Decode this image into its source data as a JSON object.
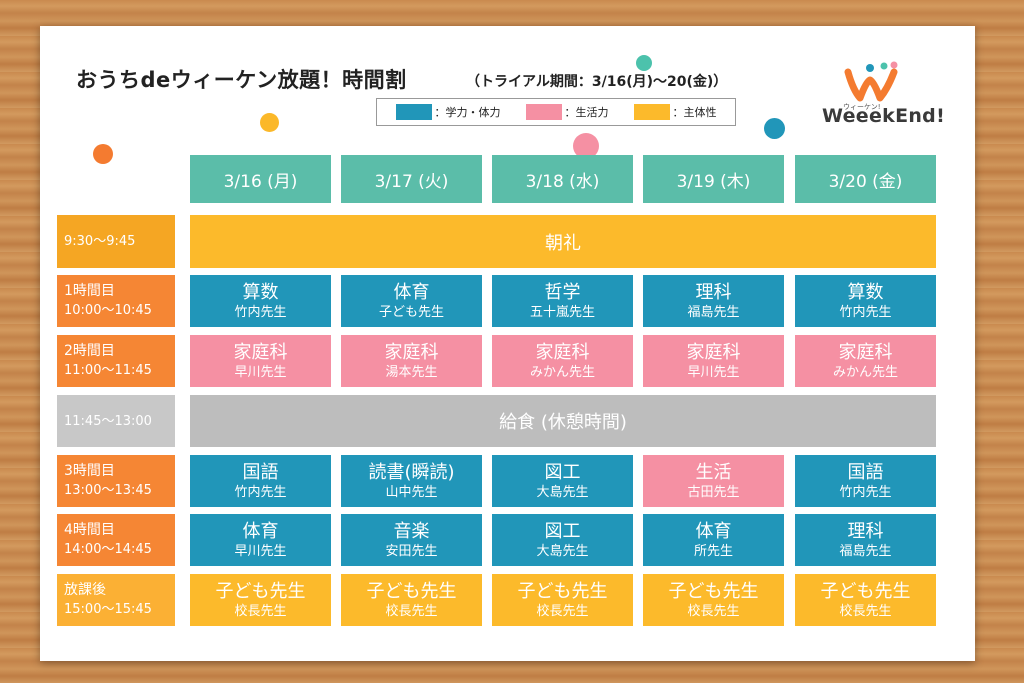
{
  "title": "おうちdeウィーケン放題！時間割",
  "subtitle": "（トライアル期間：3/16(月)～20(金)）",
  "legend": [
    {
      "label": "：学力・体力",
      "color": "#2196b9"
    },
    {
      "label": "：生活力",
      "color": "#f590a3"
    },
    {
      "label": "：主体性",
      "color": "#fcba2b"
    }
  ],
  "logo": {
    "text": "WeeekEnd!",
    "small": "ウィーケン!"
  },
  "days": [
    "3/16 (月)",
    "3/17 (火)",
    "3/18 (水)",
    "3/19 (木)",
    "3/20 (金)"
  ],
  "periods": [
    {
      "name": "",
      "time": "9:30～9:45"
    },
    {
      "name": "1時間目",
      "time": "10:00～10:45"
    },
    {
      "name": "2時間目",
      "time": "11:00～11:45"
    },
    {
      "name": "",
      "time": "11:45～13:00"
    },
    {
      "name": "3時間目",
      "time": "13:00～13:45"
    },
    {
      "name": "4時間目",
      "time": "14:00～14:45"
    },
    {
      "name": "放課後",
      "time": "15:00～15:45"
    }
  ],
  "morning": "朝礼",
  "lunch": "給食 (休憩時間)",
  "schedule": {
    "p1": [
      {
        "subject": "算数",
        "teacher": "竹内先生",
        "color": "#2196b9"
      },
      {
        "subject": "体育",
        "teacher": "子ども先生",
        "color": "#2196b9"
      },
      {
        "subject": "哲学",
        "teacher": "五十嵐先生",
        "color": "#2196b9"
      },
      {
        "subject": "理科",
        "teacher": "福島先生",
        "color": "#2196b9"
      },
      {
        "subject": "算数",
        "teacher": "竹内先生",
        "color": "#2196b9"
      }
    ],
    "p2": [
      {
        "subject": "家庭科",
        "teacher": "早川先生",
        "color": "#f590a3"
      },
      {
        "subject": "家庭科",
        "teacher": "湯本先生",
        "color": "#f590a3"
      },
      {
        "subject": "家庭科",
        "teacher": "みかん先生",
        "color": "#f590a3"
      },
      {
        "subject": "家庭科",
        "teacher": "早川先生",
        "color": "#f590a3"
      },
      {
        "subject": "家庭科",
        "teacher": "みかん先生",
        "color": "#f590a3"
      }
    ],
    "p3": [
      {
        "subject": "国語",
        "teacher": "竹内先生",
        "color": "#2196b9"
      },
      {
        "subject": "読書(瞬読)",
        "teacher": "山中先生",
        "color": "#2196b9"
      },
      {
        "subject": "図工",
        "teacher": "大島先生",
        "color": "#2196b9"
      },
      {
        "subject": "生活",
        "teacher": "古田先生",
        "color": "#f590a3"
      },
      {
        "subject": "国語",
        "teacher": "竹内先生",
        "color": "#2196b9"
      }
    ],
    "p4": [
      {
        "subject": "体育",
        "teacher": "早川先生",
        "color": "#2196b9"
      },
      {
        "subject": "音楽",
        "teacher": "安田先生",
        "color": "#2196b9"
      },
      {
        "subject": "図工",
        "teacher": "大島先生",
        "color": "#2196b9"
      },
      {
        "subject": "体育",
        "teacher": "所先生",
        "color": "#2196b9"
      },
      {
        "subject": "理科",
        "teacher": "福島先生",
        "color": "#2196b9"
      }
    ],
    "after": [
      {
        "subject": "子ども先生",
        "teacher": "校長先生",
        "color": "#fcba2b"
      },
      {
        "subject": "子ども先生",
        "teacher": "校長先生",
        "color": "#fcba2b"
      },
      {
        "subject": "子ども先生",
        "teacher": "校長先生",
        "color": "#fcba2b"
      },
      {
        "subject": "子ども先生",
        "teacher": "校長先生",
        "color": "#fcba2b"
      },
      {
        "subject": "子ども先生",
        "teacher": "校長先生",
        "color": "#fcba2b"
      }
    ]
  }
}
